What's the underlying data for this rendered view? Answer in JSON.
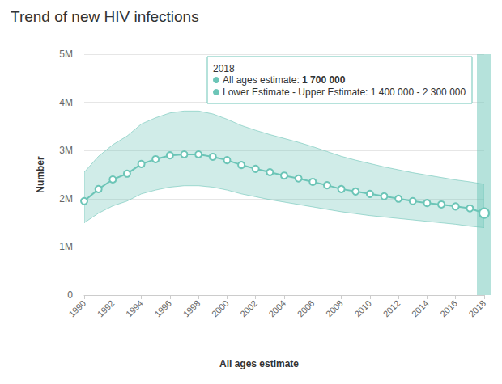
{
  "chart_data": {
    "type": "line",
    "title": "Trend of new HIV infections",
    "y_label": "Number",
    "x": [
      1990,
      1991,
      1992,
      1993,
      1994,
      1995,
      1996,
      1997,
      1998,
      1999,
      2000,
      2001,
      2002,
      2003,
      2004,
      2005,
      2006,
      2007,
      2008,
      2009,
      2010,
      2011,
      2012,
      2013,
      2014,
      2015,
      2016,
      2017,
      2018
    ],
    "series": [
      {
        "name": "All ages estimate",
        "color": "#6cc5b7",
        "marker": "circle",
        "values": [
          1950000,
          2200000,
          2400000,
          2520000,
          2720000,
          2820000,
          2900000,
          2920000,
          2920000,
          2870000,
          2800000,
          2700000,
          2620000,
          2550000,
          2480000,
          2420000,
          2350000,
          2280000,
          2200000,
          2150000,
          2100000,
          2050000,
          2000000,
          1950000,
          1910000,
          1880000,
          1840000,
          1800000,
          1700000
        ]
      }
    ],
    "lower_estimate": [
      1500000,
      1700000,
      1850000,
      1950000,
      2100000,
      2180000,
      2240000,
      2270000,
      2270000,
      2240000,
      2180000,
      2100000,
      2040000,
      1980000,
      1930000,
      1880000,
      1830000,
      1780000,
      1730000,
      1690000,
      1650000,
      1620000,
      1590000,
      1560000,
      1530000,
      1500000,
      1470000,
      1430000,
      1400000
    ],
    "upper_estimate": [
      2550000,
      2880000,
      3120000,
      3300000,
      3550000,
      3680000,
      3780000,
      3820000,
      3820000,
      3760000,
      3650000,
      3520000,
      3420000,
      3330000,
      3250000,
      3170000,
      3080000,
      2980000,
      2880000,
      2800000,
      2730000,
      2660000,
      2600000,
      2540000,
      2490000,
      2440000,
      2390000,
      2350000,
      2300000
    ],
    "xlim": [
      1990,
      2018
    ],
    "xticks": [
      1990,
      1992,
      1994,
      1996,
      1998,
      2000,
      2002,
      2004,
      2006,
      2008,
      2010,
      2012,
      2014,
      2016,
      2018
    ],
    "ylim": [
      0,
      5000000
    ],
    "yticks": [
      0,
      {
        "value": 1000000,
        "label": "1M"
      },
      {
        "value": 2000000,
        "label": "2M"
      },
      {
        "value": 3000000,
        "label": "3M"
      },
      {
        "value": 4000000,
        "label": "4M"
      },
      {
        "value": 5000000,
        "label": "5M"
      }
    ],
    "grid": true,
    "legend": "bottom",
    "annotation": {
      "x": 2018,
      "title": "2018",
      "lines": [
        {
          "label": "All ages estimate:",
          "value": "1 700 000"
        },
        {
          "label": "Lower Estimate - Upper Estimate:",
          "value": "1 400 000 - 2 300 000"
        }
      ]
    }
  }
}
